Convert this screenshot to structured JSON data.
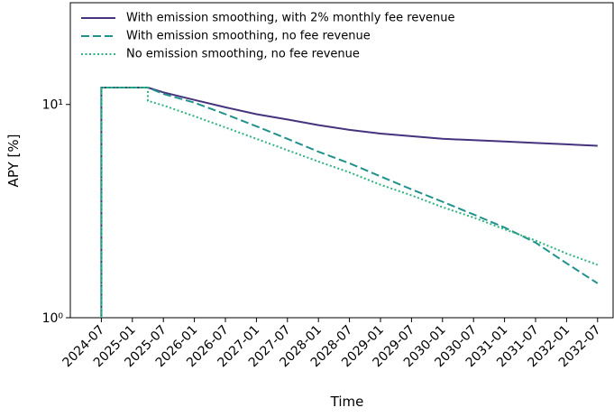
{
  "chart_data": {
    "type": "line",
    "xlabel": "Time",
    "ylabel": "APY [%]",
    "log_y": true,
    "legend": "upper left",
    "xlim": [
      "2024-01",
      "2032-10"
    ],
    "xticks": [
      "2024-07",
      "2025-01",
      "2025-07",
      "2026-01",
      "2026-07",
      "2027-01",
      "2027-07",
      "2028-01",
      "2028-07",
      "2029-01",
      "2029-07",
      "2030-01",
      "2030-07",
      "2031-01",
      "2031-07",
      "2032-01",
      "2032-07"
    ],
    "ylim": [
      1,
      30
    ],
    "yticks": [
      {
        "value": 1,
        "label": "10⁰"
      },
      {
        "value": 10,
        "label": "10¹"
      }
    ],
    "series": [
      {
        "name": "With emission smoothing, with 2% monthly fee revenue",
        "color": "#46337e",
        "line_style": "solid",
        "x": [
          "2024-07",
          "2024-07",
          "2025-04",
          "2025-07",
          "2026-01",
          "2026-07",
          "2027-01",
          "2027-07",
          "2028-01",
          "2028-07",
          "2029-01",
          "2029-07",
          "2030-01",
          "2030-07",
          "2031-01",
          "2031-07",
          "2032-01",
          "2032-07"
        ],
        "values": [
          1,
          12,
          12,
          11.4,
          10.5,
          9.7,
          9.0,
          8.5,
          8.0,
          7.6,
          7.3,
          7.1,
          6.9,
          6.8,
          6.7,
          6.6,
          6.5,
          6.4
        ]
      },
      {
        "name": "With emission smoothing, no fee revenue",
        "color": "#21918c",
        "line_style": "dashed",
        "x": [
          "2024-07",
          "2024-07",
          "2025-04",
          "2025-07",
          "2026-01",
          "2026-07",
          "2027-01",
          "2027-07",
          "2028-01",
          "2028-07",
          "2029-01",
          "2029-07",
          "2030-01",
          "2030-07",
          "2031-01",
          "2031-07",
          "2032-01",
          "2032-07"
        ],
        "values": [
          1,
          12,
          12,
          11.2,
          10.2,
          9.0,
          7.9,
          6.9,
          6.0,
          5.3,
          4.6,
          4.0,
          3.5,
          3.05,
          2.65,
          2.25,
          1.8,
          1.45
        ]
      },
      {
        "name": "No emission smoothing, no fee revenue",
        "color": "#2eb37c",
        "line_style": "dotted",
        "x": [
          "2024-07",
          "2024-07",
          "2025-04",
          "2025-04",
          "2025-07",
          "2026-01",
          "2026-07",
          "2027-01",
          "2027-07",
          "2028-01",
          "2028-07",
          "2029-01",
          "2029-07",
          "2030-01",
          "2030-07",
          "2031-01",
          "2031-07",
          "2032-01",
          "2032-07"
        ],
        "values": [
          1,
          12,
          12,
          10.4,
          9.9,
          8.8,
          7.8,
          6.9,
          6.1,
          5.4,
          4.8,
          4.2,
          3.75,
          3.3,
          2.95,
          2.6,
          2.3,
          2.0,
          1.77
        ]
      }
    ]
  }
}
